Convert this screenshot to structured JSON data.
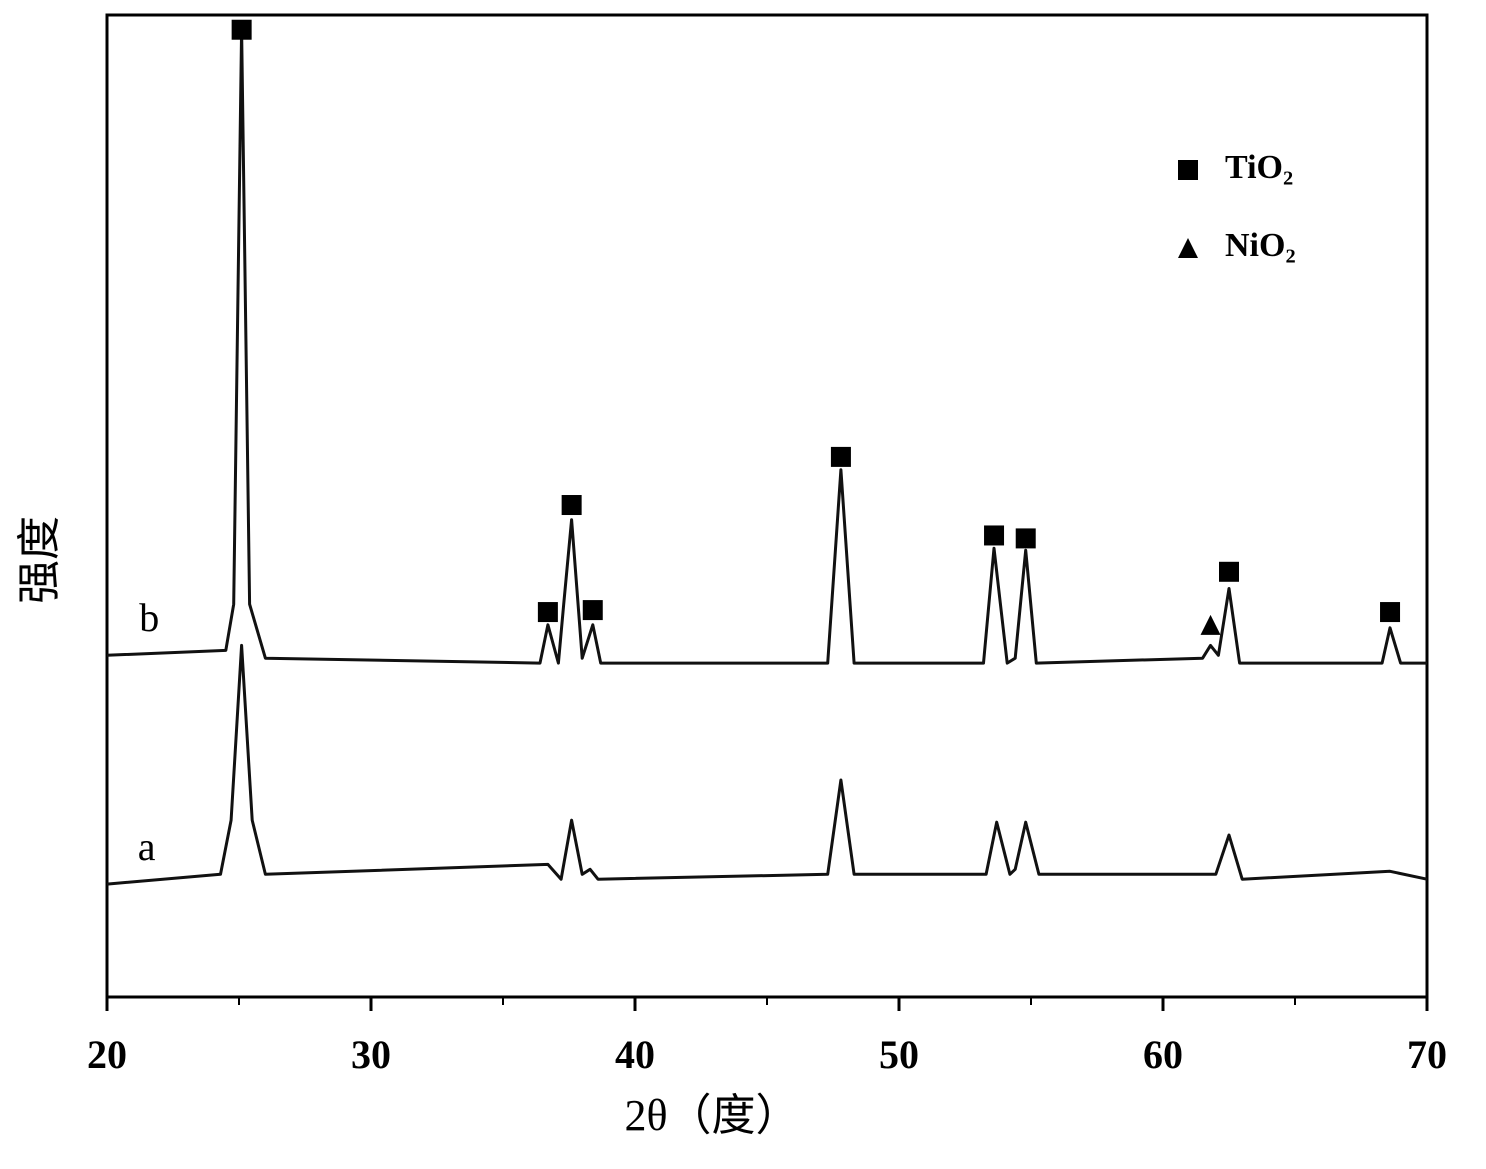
{
  "chart_data": {
    "type": "line",
    "x_label": "2θ（度）",
    "y_label": "强度",
    "xlim": [
      20,
      70
    ],
    "ylim": [
      0,
      100
    ],
    "xticks": [
      20,
      30,
      40,
      50,
      60,
      70
    ],
    "xminorticks": [
      25,
      35,
      45,
      55,
      65
    ],
    "series": [
      {
        "name": "a",
        "color": "#111111",
        "x": [
          20,
          24.3,
          24.7,
          25.1,
          25.5,
          26,
          36.7,
          37.2,
          37.6,
          38.0,
          38.3,
          38.6,
          47.3,
          47.8,
          48.3,
          53.3,
          53.7,
          54.2,
          54.4,
          54.8,
          55.3,
          62.0,
          62.5,
          63.0,
          68.6,
          70
        ],
        "values": [
          11.5,
          12.5,
          18,
          35.8,
          18,
          12.5,
          13.5,
          12,
          18,
          12.5,
          13,
          12,
          12.5,
          22.1,
          12.5,
          12.5,
          17.8,
          12.5,
          13,
          17.8,
          12.5,
          12.5,
          16.5,
          12,
          12.8,
          12
        ],
        "label_x": 21.5,
        "label_y": 14.9
      },
      {
        "name": "b",
        "color": "#111111",
        "x": [
          20,
          24.5,
          24.8,
          25.1,
          25.4,
          26.0,
          36.4,
          36.7,
          37.1,
          37.3,
          37.6,
          38.0,
          38.4,
          38.7,
          47.3,
          47.8,
          48.3,
          53.2,
          53.6,
          54.1,
          54.4,
          54.8,
          55.2,
          61.5,
          61.8,
          62.1,
          62.5,
          62.9,
          68.3,
          68.6,
          69.0,
          70
        ],
        "values": [
          34.8,
          35.3,
          40,
          98.5,
          40,
          34.5,
          34,
          37.9,
          34,
          40,
          48.6,
          34.5,
          37.9,
          34,
          34,
          53.7,
          34,
          34,
          45.7,
          34,
          34.5,
          45.5,
          34,
          34.5,
          35.8,
          34.8,
          41.6,
          34,
          34,
          37.6,
          34,
          34
        ],
        "label_x": 21.6,
        "label_y": 38.2
      }
    ],
    "markers": [
      {
        "name": "TiO₂",
        "symbol": "square",
        "color": "#000000",
        "x": [
          25.1,
          36.7,
          37.6,
          38.4,
          47.8,
          53.6,
          54.8,
          62.5,
          68.6
        ],
        "y": [
          98.5,
          39.2,
          50.1,
          39.4,
          55,
          47,
          46.7,
          43.3,
          39.2
        ]
      },
      {
        "name": "NiO₂",
        "symbol": "triangle",
        "color": "#000000",
        "x": [
          61.8
        ],
        "y": [
          37.9
        ]
      }
    ]
  }
}
